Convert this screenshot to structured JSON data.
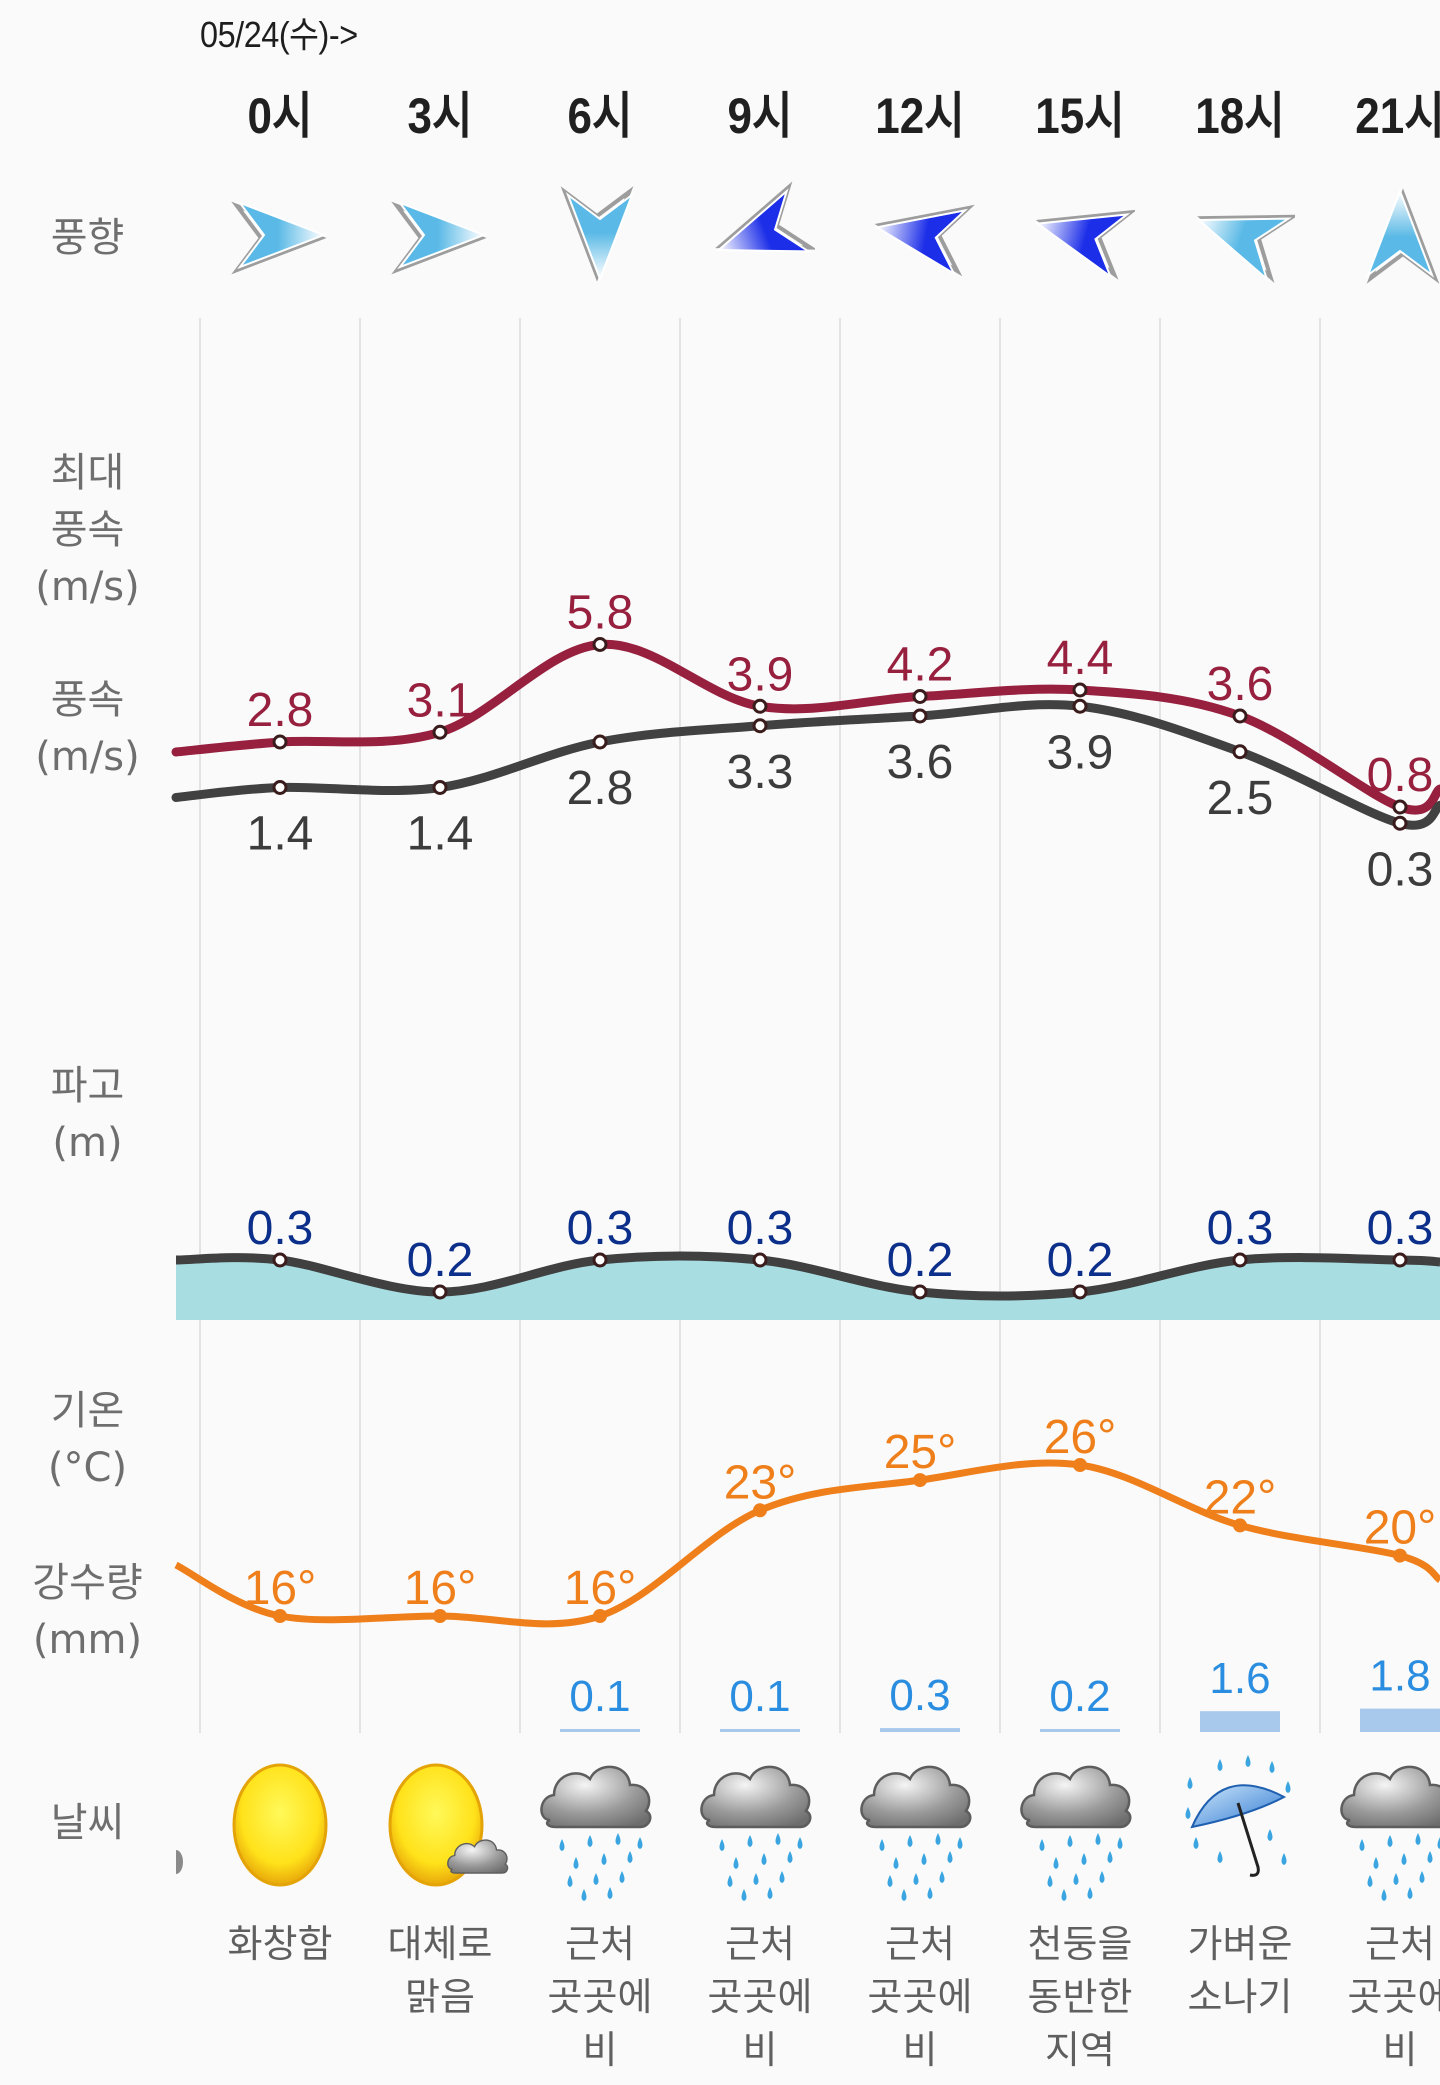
{
  "header": {
    "date": "05/24(수)->",
    "hours": [
      "0시",
      "3시",
      "6시",
      "9시",
      "12시",
      "15시",
      "18시",
      "21시"
    ]
  },
  "row_labels": {
    "wind_direction": "풍향",
    "max_wind_speed": "최대\n풍속\n(m/s)",
    "wind_speed": "풍속\n(m/s)",
    "wave_height": "파고\n(m)",
    "temperature": "기온\n(°C)",
    "precipitation": "강수량\n(mm)",
    "weather": "날씨"
  },
  "wind_direction": [
    {
      "icon": "wind-arrow-east-icon",
      "angle": 90,
      "strength": "light"
    },
    {
      "icon": "wind-arrow-east-icon",
      "angle": 90,
      "strength": "light"
    },
    {
      "icon": "wind-arrow-south-icon",
      "angle": 180,
      "strength": "light"
    },
    {
      "icon": "wind-arrow-southwest-icon",
      "angle": 250,
      "strength": "strong"
    },
    {
      "icon": "wind-arrow-west-icon",
      "angle": 280,
      "strength": "strong"
    },
    {
      "icon": "wind-arrow-west-icon",
      "angle": 285,
      "strength": "strong"
    },
    {
      "icon": "wind-arrow-west-icon",
      "angle": 290,
      "strength": "light"
    },
    {
      "icon": "wind-arrow-north-icon",
      "angle": 0,
      "strength": "light"
    }
  ],
  "colors": {
    "max_wind": "#97203f",
    "avg_wind": "#414141",
    "avg_wind_text": "#3c3c3c",
    "wave_line": "#404040",
    "wave_fill": "#a8dde2",
    "wave_text": "#0b2f8a",
    "temperature": "#ef7f1a",
    "precip_text": "#2a8de0",
    "precip_bar": "#a8c9ec",
    "gridline": "#e3e3e3",
    "arrow_light": "#5ab9e6",
    "arrow_strong": "#1c2ee8"
  },
  "chart_data": [
    {
      "type": "line",
      "title": "풍속 / 최대풍속 (m/s)",
      "categories": [
        "0시",
        "3시",
        "6시",
        "9시",
        "12시",
        "15시",
        "18시",
        "21시"
      ],
      "series": [
        {
          "name": "최대풍속",
          "values": [
            2.8,
            3.1,
            5.8,
            3.9,
            4.2,
            4.4,
            3.6,
            0.8
          ],
          "labels": [
            "2.8",
            "3.1",
            "5.8",
            "3.9",
            "4.2",
            "4.4",
            "3.6",
            "0.8"
          ]
        },
        {
          "name": "풍속",
          "values": [
            1.4,
            1.4,
            2.8,
            3.3,
            3.6,
            3.9,
            2.5,
            0.3
          ],
          "labels": [
            "1.4",
            "1.4",
            "2.8",
            "3.3",
            "3.6",
            "3.9",
            "2.5",
            "0.3"
          ]
        }
      ],
      "ylim": [
        0,
        7
      ]
    },
    {
      "type": "area",
      "title": "파고 (m)",
      "categories": [
        "0시",
        "3시",
        "6시",
        "9시",
        "12시",
        "15시",
        "18시",
        "21시"
      ],
      "values": [
        0.3,
        0.2,
        0.3,
        0.3,
        0.2,
        0.2,
        0.3,
        0.3
      ],
      "labels": [
        "0.3",
        "0.2",
        "0.3",
        "0.3",
        "0.2",
        "0.2",
        "0.3",
        "0.3"
      ]
    },
    {
      "type": "line",
      "title": "기온 (°C)",
      "categories": [
        "0시",
        "3시",
        "6시",
        "9시",
        "12시",
        "15시",
        "18시",
        "21시"
      ],
      "values": [
        16,
        16,
        16,
        23,
        25,
        26,
        22,
        20
      ],
      "labels": [
        "16°",
        "16°",
        "16°",
        "23°",
        "25°",
        "26°",
        "22°",
        "20°"
      ]
    },
    {
      "type": "bar",
      "title": "강수량 (mm)",
      "categories": [
        "0시",
        "3시",
        "6시",
        "9시",
        "12시",
        "15시",
        "18시",
        "21시"
      ],
      "values": [
        0,
        0,
        0.1,
        0.1,
        0.3,
        0.2,
        1.6,
        1.8
      ],
      "labels": [
        "",
        "",
        "0.1",
        "0.1",
        "0.3",
        "0.2",
        "1.6",
        "1.8"
      ]
    }
  ],
  "weather": [
    {
      "icon": "sun-icon",
      "label": "화창함"
    },
    {
      "icon": "sun-cloud-icon",
      "label": "대체로\n맑음"
    },
    {
      "icon": "rain-cloud-icon",
      "label": "근처\n곳곳에\n비"
    },
    {
      "icon": "rain-cloud-icon",
      "label": "근처\n곳곳에\n비"
    },
    {
      "icon": "rain-cloud-icon",
      "label": "근처\n곳곳에\n비"
    },
    {
      "icon": "rain-cloud-icon",
      "label": "천둥을\n동반한\n지역"
    },
    {
      "icon": "umbrella-rain-icon",
      "label": "가벼운\n소나기"
    },
    {
      "icon": "rain-cloud-icon",
      "label": "근처\n곳곳에\n비"
    }
  ]
}
